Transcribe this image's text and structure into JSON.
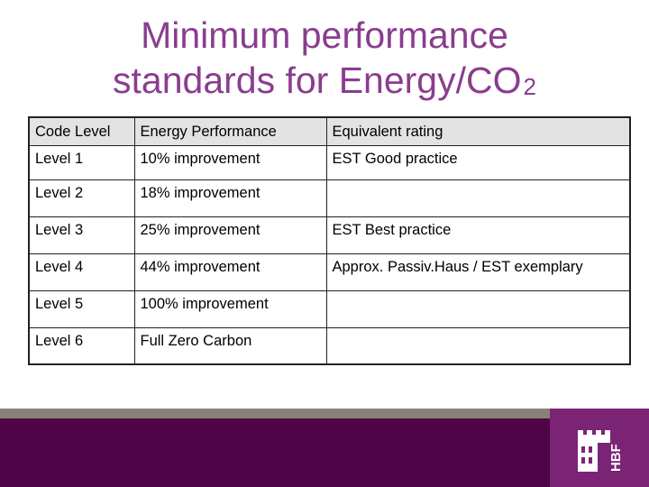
{
  "title": {
    "line1": "Minimum performance",
    "line2_main": "standards for Energy/CO",
    "line2_sub": "2"
  },
  "table": {
    "headers": [
      "Code Level",
      "Energy Performance",
      "Equivalent rating"
    ],
    "rows": [
      [
        "Level 1",
        "10% improvement",
        "EST Good practice"
      ],
      [
        "Level 2",
        "18% improvement",
        ""
      ],
      [
        "Level 3",
        "25% improvement",
        "EST Best practice"
      ],
      [
        "Level 4",
        "44% improvement",
        "Approx. Passiv.Haus / EST exemplary"
      ],
      [
        "Level 5",
        "100% improvement",
        ""
      ],
      [
        "Level 6",
        "Full Zero Carbon",
        ""
      ]
    ]
  },
  "colors": {
    "title": "#8a3d8f",
    "band_grey": "#8a8079",
    "band_purple": "#4e0548",
    "logo_panel": "#7b2476"
  },
  "logo": {
    "icon": "castle-icon",
    "text": "HBF"
  }
}
